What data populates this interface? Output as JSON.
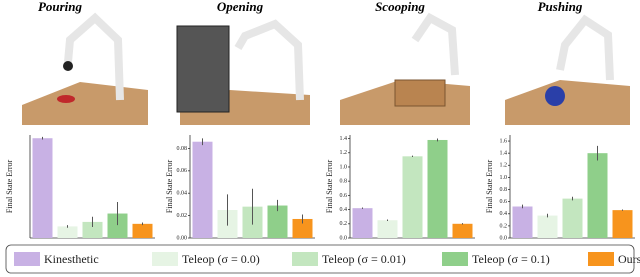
{
  "legend": {
    "items": [
      {
        "name": "Kinesthetic",
        "color": "#c8b1e4"
      },
      {
        "name": "Teleop (σ = 0.0)",
        "color": "#e6f4e4"
      },
      {
        "name": "Teleop (σ = 0.01)",
        "color": "#c3e6bf"
      },
      {
        "name": "Teleop (σ = 0.1)",
        "color": "#8fcf8a"
      },
      {
        "name": "Ours",
        "color": "#f7941d"
      }
    ]
  },
  "chart_data": [
    {
      "type": "bar",
      "title": "Pouring",
      "ylabel": "Final State Error",
      "values": [
        1.55,
        0.18,
        0.25,
        0.38,
        0.22
      ],
      "errors": [
        0.02,
        0.02,
        0.08,
        0.18,
        0.02
      ],
      "ylim": [
        0,
        1.6
      ]
    },
    {
      "type": "bar",
      "title": "Opening",
      "ylabel": "Final State Error",
      "values": [
        0.086,
        0.025,
        0.028,
        0.029,
        0.017
      ],
      "errors": [
        0.003,
        0.014,
        0.016,
        0.005,
        0.004
      ],
      "ylim": [
        0,
        0.092
      ],
      "yticks": [
        {
          "value": 0,
          "label": "0.00"
        },
        0.02,
        0.04,
        0.06,
        0.08
      ]
    },
    {
      "type": "bar",
      "title": "Scooping",
      "ylabel": "Final State Error",
      "values": [
        0.42,
        0.25,
        1.15,
        1.38,
        0.2
      ],
      "errors": [
        0.01,
        0.01,
        0.01,
        0.02,
        0.01
      ],
      "ylim": [
        0,
        1.45
      ],
      "yticks": [
        {
          "value": 0,
          "label": "0.0"
        },
        0.2,
        0.4,
        0.6,
        0.8,
        {
          "value": 1,
          "label": "1.0"
        },
        1.2,
        1.4
      ]
    },
    {
      "type": "bar",
      "title": "Pushing",
      "ylabel": "Final State Error",
      "values": [
        0.52,
        0.37,
        0.65,
        1.4,
        0.46
      ],
      "errors": [
        0.03,
        0.03,
        0.03,
        0.12,
        0.01
      ],
      "ylim": [
        0,
        1.7
      ],
      "yticks": [
        {
          "value": 0,
          "label": "0.0"
        },
        0.2,
        0.4,
        0.6,
        0.8,
        {
          "value": 1,
          "label": "1.0"
        },
        1.2,
        1.4,
        1.6
      ]
    }
  ]
}
